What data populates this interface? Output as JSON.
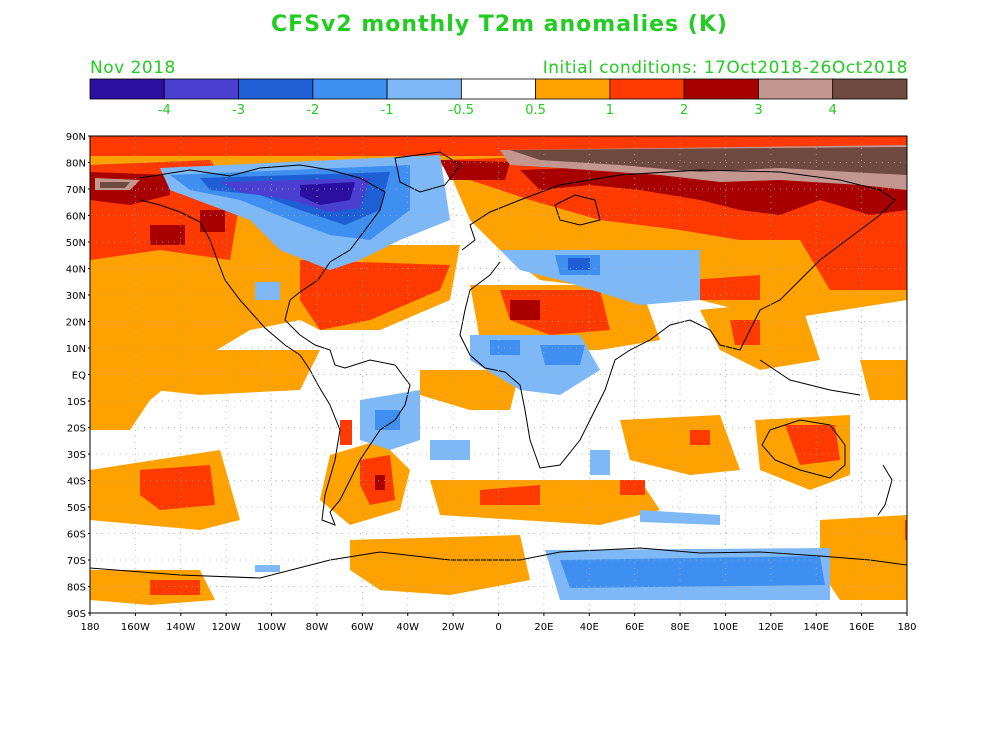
{
  "header": {
    "title": "CFSv2 monthly T2m anomalies (K)",
    "period": "Nov 2018",
    "initial_conditions": "Initial conditions: 17Oct2018-26Oct2018",
    "text_color": "#22cc22"
  },
  "colorbar": {
    "colors": [
      "#2a0fa0",
      "#4a3fd0",
      "#1f5fd6",
      "#3f8ff0",
      "#7fb8f6",
      "#ffffff",
      "#ffa200",
      "#ff3a00",
      "#a80000",
      "#c49690",
      "#6e4a40"
    ],
    "labels": [
      "-4",
      "-3",
      "-2",
      "-1",
      "-0.5",
      "0.5",
      "1",
      "2",
      "3",
      "4"
    ]
  },
  "map": {
    "lat_labels": [
      "90N",
      "80N",
      "70N",
      "60N",
      "50N",
      "40N",
      "30N",
      "20N",
      "10N",
      "EQ",
      "10S",
      "20S",
      "30S",
      "40S",
      "50S",
      "60S",
      "70S",
      "80S",
      "90S"
    ],
    "lon_labels": [
      "180",
      "160W",
      "140W",
      "120W",
      "100W",
      "80W",
      "60W",
      "40W",
      "20W",
      "0",
      "20E",
      "40E",
      "60E",
      "80E",
      "100E",
      "120E",
      "140E",
      "160E",
      "180"
    ],
    "lon_range": [
      -180,
      180
    ],
    "lat_range": [
      -90,
      90
    ],
    "grid": "dotted"
  }
}
